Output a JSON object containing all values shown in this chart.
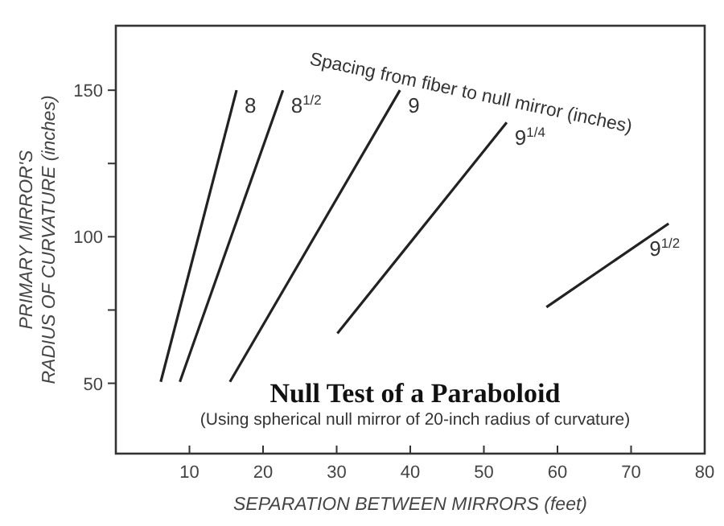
{
  "chart_data": {
    "type": "line",
    "title": "Null Test of a Paraboloid",
    "subtitle": "(Using spherical null mirror of 20-inch radius of curvature)",
    "xlabel": "SEPARATION BETWEEN MIRRORS (feet)",
    "ylabel": "PRIMARY MIRROR'S\nRADIUS OF CURVATURE (inches)",
    "legend_title": "Spacing from fiber to null mirror (inches)",
    "legend": false,
    "grid": false,
    "marker": "none",
    "line_style": "solid",
    "xlim": [
      0,
      80
    ],
    "ylim": [
      26,
      172
    ],
    "xticks": [
      10,
      20,
      30,
      40,
      50,
      60,
      70,
      80
    ],
    "yticks": [
      50,
      {
        "value": 75,
        "label": null
      },
      100,
      {
        "value": 125,
        "label": null
      },
      150
    ],
    "series": [
      {
        "name": "8",
        "color": "#222222",
        "x": [
          6.1,
          16.4
        ],
        "values": [
          50.5,
          150
        ]
      },
      {
        "name": "8$^{1/2}$",
        "color": "#222222",
        "x": [
          8.7,
          22.7
        ],
        "values": [
          50.5,
          150
        ]
      },
      {
        "name": "9",
        "color": "#222222",
        "x": [
          15.5,
          38.6
        ],
        "values": [
          50.5,
          150
        ]
      },
      {
        "name": "9$^{1/4}$",
        "color": "#222222",
        "x": [
          30.1,
          53.1
        ],
        "values": [
          67,
          139
        ]
      },
      {
        "name": "9$^{1/2}$",
        "color": "#222222",
        "x": [
          58.5,
          75.1
        ],
        "values": [
          76,
          104.5
        ]
      }
    ]
  }
}
